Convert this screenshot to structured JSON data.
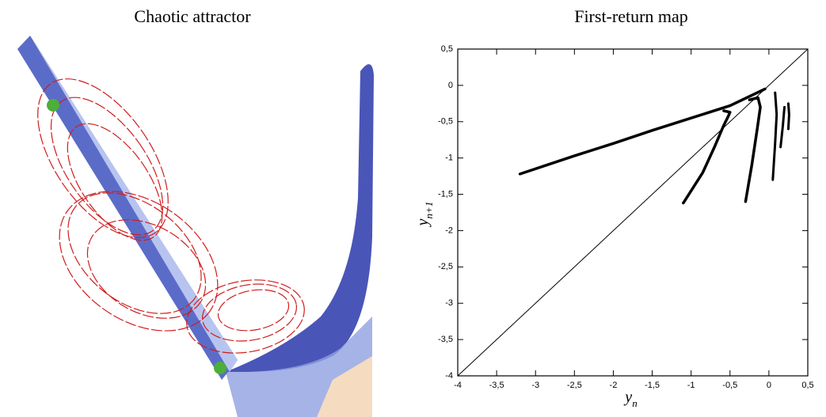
{
  "left_panel": {
    "title": "Chaotic attractor"
  },
  "chart_data": {
    "type": "line",
    "title": "First-return map",
    "x_label": "y",
    "x_label_sub": "n",
    "y_label": "y",
    "y_label_sub": "n+1",
    "xlim": [
      -4,
      0.5
    ],
    "ylim": [
      -4,
      0.5
    ],
    "xticks": [
      -4,
      {
        "value": -3.5,
        "label": "-3,5"
      },
      -3,
      {
        "value": -2.5,
        "label": "-2,5"
      },
      -2,
      {
        "value": -1.5,
        "label": "-1,5"
      },
      -1,
      {
        "value": -0.5,
        "label": "-0,5"
      },
      0,
      {
        "value": 0.5,
        "label": "0,5"
      }
    ],
    "yticks": [
      -4,
      {
        "value": -3.5,
        "label": "-3,5"
      },
      -3,
      {
        "value": -2.5,
        "label": "-2,5"
      },
      -2,
      {
        "value": -1.5,
        "label": "-1,5"
      },
      -1,
      {
        "value": -0.5,
        "label": "-0,5"
      },
      0,
      {
        "value": 0.5,
        "label": "0,5"
      }
    ],
    "series": [
      {
        "color": "#000000",
        "width": 1,
        "x": [
          -4,
          0.5
        ],
        "values": [
          -4,
          0.5
        ]
      },
      {
        "color": "#000000",
        "width": 3.5,
        "x": [
          -3.2,
          -2.5,
          -2,
          -1.5,
          -1,
          -0.5,
          -0.05
        ],
        "values": [
          -1.22,
          -0.97,
          -0.8,
          -0.62,
          -0.45,
          -0.28,
          -0.05
        ]
      },
      {
        "color": "#000000",
        "width": 3.5,
        "x": [
          -1.1,
          -0.85,
          -0.7,
          -0.58,
          -0.52,
          -0.5,
          -0.58
        ],
        "values": [
          -1.62,
          -1.2,
          -0.85,
          -0.55,
          -0.42,
          -0.37,
          -0.35
        ]
      },
      {
        "color": "#000000",
        "width": 3.5,
        "x": [
          -0.3,
          -0.22,
          -0.15,
          -0.11,
          -0.14,
          -0.25
        ],
        "values": [
          -1.6,
          -1.1,
          -0.6,
          -0.3,
          -0.17,
          -0.2
        ]
      },
      {
        "color": "#000000",
        "width": 3,
        "x": [
          0.05,
          0.08,
          0.1,
          0.08
        ],
        "values": [
          -1.3,
          -0.8,
          -0.4,
          -0.1
        ]
      },
      {
        "color": "#000000",
        "width": 3,
        "x": [
          0.15,
          0.18,
          0.2
        ],
        "values": [
          -0.85,
          -0.55,
          -0.3
        ]
      },
      {
        "color": "#000000",
        "width": 3,
        "x": [
          0.25,
          0.26,
          0.25
        ],
        "values": [
          -0.6,
          -0.4,
          -0.25
        ]
      }
    ]
  }
}
